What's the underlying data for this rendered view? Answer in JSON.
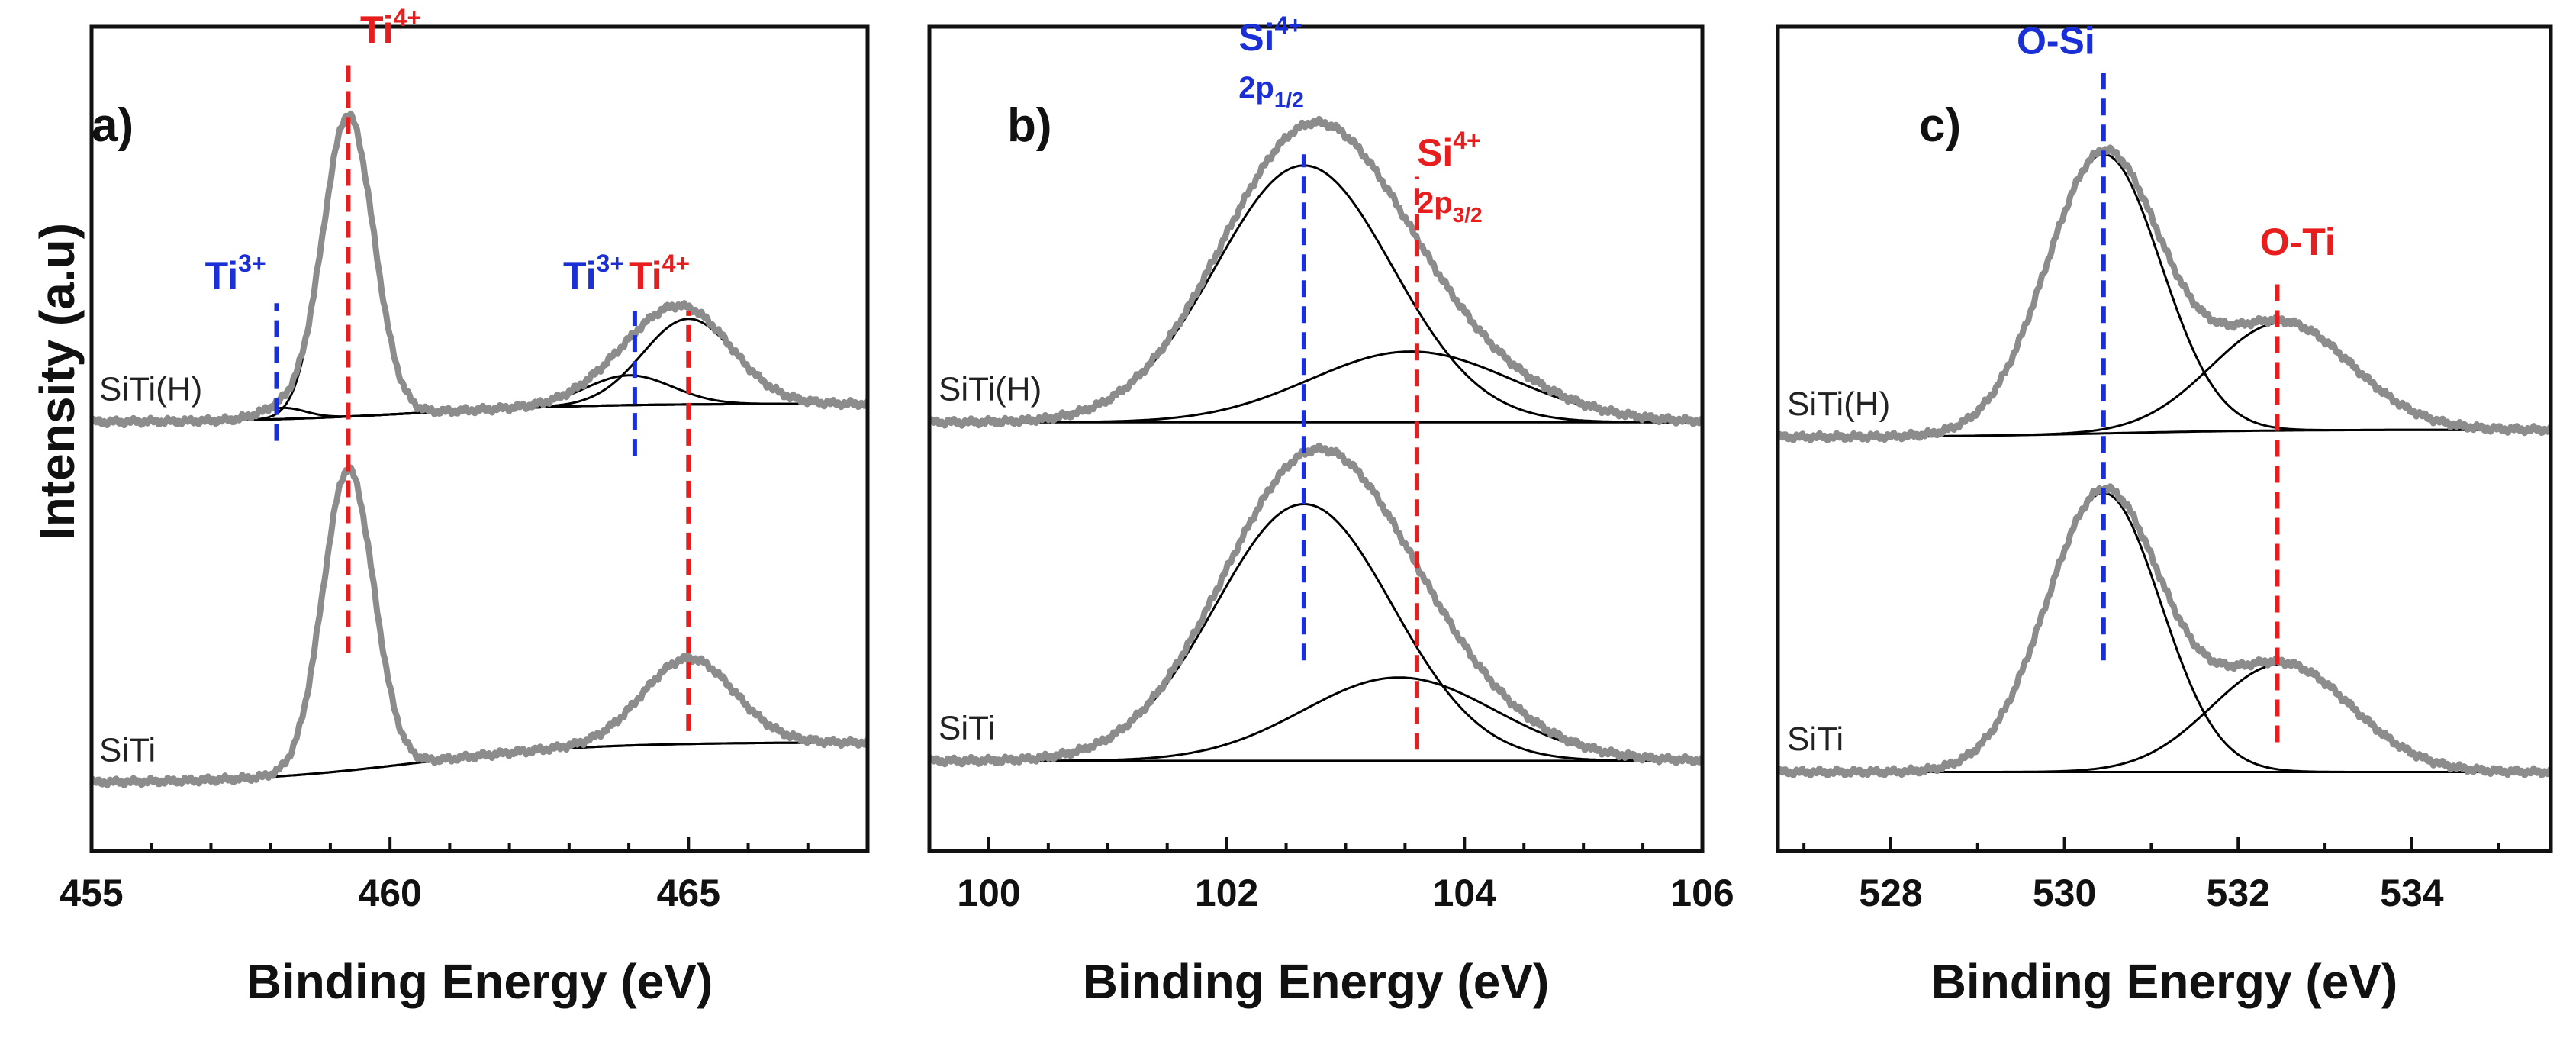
{
  "figure": {
    "ylabel": "Intensity (a.u)",
    "colors": {
      "frame": "#111111",
      "envelope": "#8c8c8c",
      "component": "#000000",
      "blue": "#1a2fd6",
      "red": "#e81e1e"
    }
  },
  "chart_data": [
    {
      "type": "line",
      "panel_label": "a)",
      "xlabel": "Binding  Energy (eV)",
      "ylabel": "Intensity (a.u)",
      "xlim": [
        455,
        468
      ],
      "ylim": [
        0,
        10
      ],
      "xticks": [
        "455",
        "460",
        "465"
      ],
      "xtick_values": [
        455,
        460,
        465
      ],
      "minor_step": 1,
      "samples": [
        {
          "name": "SiTi(H)",
          "offset": 5.3,
          "background": {
            "start": 0,
            "end": 0.25
          },
          "components": [
            {
              "label": "Ti3+ 2p3/2",
              "center": 458.2,
              "fwhm": 0.9,
              "height": 0.15
            },
            {
              "label": "Ti4+ 2p3/2",
              "center": 459.3,
              "fwhm": 1.0,
              "height": 4.05
            },
            {
              "label": "Ti3+ 2p1/2",
              "center": 464.0,
              "fwhm": 1.7,
              "height": 0.4
            },
            {
              "label": "Ti4+ 2p1/2",
              "center": 465.0,
              "fwhm": 1.8,
              "height": 1.15
            }
          ]
        },
        {
          "name": "SiTi",
          "offset": 0.45,
          "background": {
            "start": 0,
            "end": 0.55
          },
          "components": [
            {
              "label": "Ti4+ 2p3/2",
              "center": 459.3,
              "fwhm": 1.0,
              "height": 4.05
            },
            {
              "label": "Ti4+ 2p1/2",
              "center": 465.0,
              "fwhm": 1.8,
              "height": 1.15
            }
          ]
        }
      ],
      "reference_lines": [
        {
          "x": 459.3,
          "y_range": [
            2.2,
            10.1
          ],
          "color": "red"
        },
        {
          "x": 458.1,
          "y_range": [
            5.05,
            6.9
          ],
          "color": "blue"
        },
        {
          "x": 464.1,
          "y_range": [
            4.85,
            6.8
          ],
          "color": "blue"
        },
        {
          "x": 465.0,
          "y_range": [
            1.15,
            6.8
          ],
          "color": "red"
        }
      ],
      "annotations": [
        {
          "main": "Ti",
          "sup": "4+",
          "sub": "",
          "x": 459.5,
          "y": 10.4,
          "color": "red"
        },
        {
          "main": "Ti",
          "sup": "3+",
          "sub": "",
          "x": 456.9,
          "y": 7.1,
          "color": "blue"
        },
        {
          "main": "Ti",
          "sup": "3+",
          "sub": "",
          "x": 462.9,
          "y": 7.1,
          "color": "blue"
        },
        {
          "main": "Ti",
          "sup": "4+",
          "sub": "",
          "x": 464.0,
          "y": 7.1,
          "color": "red"
        }
      ]
    },
    {
      "type": "line",
      "panel_label": "b)",
      "xlabel": "Binding  Energy (eV)",
      "ylabel": "",
      "xlim": [
        99.5,
        106
      ],
      "ylim": [
        0,
        10
      ],
      "xticks": [
        "100",
        "102",
        "104",
        "106"
      ],
      "xtick_values": [
        100,
        102,
        104,
        106
      ],
      "minor_step": 0.5,
      "samples": [
        {
          "name": "SiTi(H)",
          "offset": 5.3,
          "background": {
            "start": 0,
            "end": 0
          },
          "components": [
            {
              "label": "Si4+ 2p1/2",
              "center": 102.65,
              "fwhm": 1.75,
              "height": 3.45
            },
            {
              "label": "Si4+ 2p3/2",
              "center": 103.55,
              "fwhm": 2.0,
              "height": 0.95
            }
          ]
        },
        {
          "name": "SiTi",
          "offset": 0.75,
          "background": {
            "start": 0,
            "end": 0
          },
          "components": [
            {
              "label": "Si4+ 2p1/2",
              "center": 102.65,
              "fwhm": 1.75,
              "height": 3.45
            },
            {
              "label": "Si4+ 2p3/2",
              "center": 103.45,
              "fwhm": 1.9,
              "height": 1.12
            }
          ]
        }
      ],
      "reference_lines": [
        {
          "x": 102.65,
          "y_range": [
            2.1,
            8.9
          ],
          "color": "blue"
        },
        {
          "x": 103.6,
          "y_range": [
            0.9,
            8.6
          ],
          "color": "red"
        }
      ],
      "annotations": [
        {
          "main": "Si",
          "sup": "4+",
          "sub": "2p",
          "subsub": "1/2",
          "x": 102.1,
          "y": 10.3,
          "color": "blue"
        },
        {
          "main": "Si",
          "sup": "4+",
          "sub": "2p",
          "subsub": "3/2",
          "x": 103.6,
          "y": 8.75,
          "color": "red"
        }
      ]
    },
    {
      "type": "line",
      "panel_label": "c)",
      "xlabel": "Binding  Energy (eV)",
      "ylabel": "",
      "xlim": [
        526.7,
        535.6
      ],
      "ylim": [
        0,
        10
      ],
      "xticks": [
        "528",
        "530",
        "532",
        "534"
      ],
      "xtick_values": [
        528,
        530,
        532,
        534
      ],
      "minor_step": 1,
      "samples": [
        {
          "name": "SiTi(H)",
          "offset": 5.1,
          "background": {
            "start": 0,
            "end": 0.1
          },
          "components": [
            {
              "label": "O-Si",
              "center": 530.45,
              "fwhm": 1.55,
              "height": 3.75
            },
            {
              "label": "O-Ti",
              "center": 532.5,
              "fwhm": 1.9,
              "height": 1.45
            }
          ]
        },
        {
          "name": "SiTi",
          "offset": 0.6,
          "background": {
            "start": 0,
            "end": 0
          },
          "components": [
            {
              "label": "O-Si",
              "center": 530.45,
              "fwhm": 1.55,
              "height": 3.75
            },
            {
              "label": "O-Ti",
              "center": 532.5,
              "fwhm": 1.9,
              "height": 1.45
            }
          ]
        }
      ],
      "reference_lines": [
        {
          "x": 530.45,
          "y_range": [
            2.1,
            10.0
          ],
          "color": "blue"
        },
        {
          "x": 532.45,
          "y_range": [
            1.0,
            7.2
          ],
          "color": "red"
        }
      ],
      "annotations": [
        {
          "main": "O-Si",
          "sup": "",
          "sub": "",
          "x": 529.45,
          "y": 10.25,
          "color": "blue"
        },
        {
          "main": "O-Ti",
          "sup": "",
          "sub": "",
          "x": 532.25,
          "y": 7.55,
          "color": "red"
        }
      ]
    }
  ]
}
